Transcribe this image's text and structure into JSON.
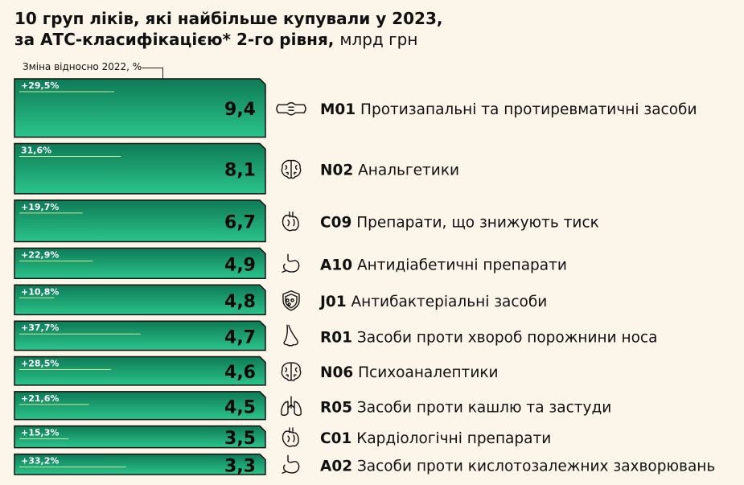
{
  "header": {
    "title_line1": "10 груп ліків, які найбільше купували у 2023,",
    "title_line2": "за АТС-класифікацією* 2-го рівня,",
    "unit": "млрд грн",
    "change_note": "Зміна відносно 2022, %"
  },
  "colors": {
    "background": "#FBF5EA",
    "bar_top": "#0E7A55",
    "bar_bottom": "#28C08A",
    "bar_border": "#111111",
    "accent_line": "#C8E89A"
  },
  "chart_data": {
    "type": "bar",
    "orientation": "horizontal",
    "unit": "млрд грн",
    "xlim": [
      0,
      9.4
    ],
    "categories": [
      {
        "code": "M01",
        "name": "Протизапальні та протиревматичні засоби",
        "value": 9.4,
        "value_label": "9,4",
        "change": 29.5,
        "change_label": "+29,5%",
        "icon": "joint-icon"
      },
      {
        "code": "N02",
        "name": "Анальгетики",
        "value": 8.1,
        "value_label": "8,1",
        "change": 31.6,
        "change_label": "31,6%",
        "icon": "brain-icon"
      },
      {
        "code": "C09",
        "name": "Препарати, що знижують тиск",
        "value": 6.7,
        "value_label": "6,7",
        "change": 19.7,
        "change_label": "+19,7%",
        "icon": "heart-icon"
      },
      {
        "code": "A10",
        "name": "Антидіабетичні препарати",
        "value": 4.9,
        "value_label": "4,9",
        "change": 22.9,
        "change_label": "+22,9%",
        "icon": "stomach-icon"
      },
      {
        "code": "J01",
        "name": "Антибактеріальні засоби",
        "value": 4.8,
        "value_label": "4,8",
        "change": 10.8,
        "change_label": "+10,8%",
        "icon": "shield-bacteria-icon"
      },
      {
        "code": "R01",
        "name": "Засоби проти хвороб порожнини носа",
        "value": 4.7,
        "value_label": "4,7",
        "change": 37.7,
        "change_label": "+37,7%",
        "icon": "nose-icon"
      },
      {
        "code": "N06",
        "name": "Психоаналептики",
        "value": 4.6,
        "value_label": "4,6",
        "change": 28.5,
        "change_label": "+28,5%",
        "icon": "brain-icon"
      },
      {
        "code": "R05",
        "name": "Засоби проти кашлю та застуди",
        "value": 4.5,
        "value_label": "4,5",
        "change": 21.6,
        "change_label": "+21,6%",
        "icon": "lungs-icon"
      },
      {
        "code": "C01",
        "name": "Кардіологічні препарати",
        "value": 3.5,
        "value_label": "3,5",
        "change": 15.3,
        "change_label": "+15,3%",
        "icon": "heart-icon"
      },
      {
        "code": "A02",
        "name": "Засоби проти кислотозалежних захворювань",
        "value": 3.3,
        "value_label": "3,3",
        "change": 33.2,
        "change_label": "+33,2%",
        "icon": "stomach-icon"
      }
    ]
  }
}
